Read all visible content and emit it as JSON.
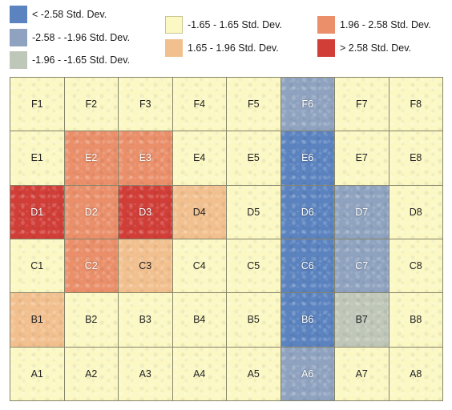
{
  "legend": [
    {
      "label": "< -2.58 Std. Dev.",
      "color": "#5b83bf",
      "class": "hot-cold"
    },
    {
      "label": "-2.58 - -1.96 Std. Dev.",
      "color": "#8fa3c0",
      "class": "cold-mid"
    },
    {
      "label": "-1.96 - -1.65 Std. Dev.",
      "color": "#bfc7b9",
      "class": "cold-low"
    },
    {
      "label": "-1.65 - 1.65 Std. Dev.",
      "color": "#fbf8c4",
      "class": "neutral"
    },
    {
      "label": "1.65 - 1.96 Std. Dev.",
      "color": "#f2c08e",
      "class": "hot-low"
    },
    {
      "label": "1.96 - 2.58 Std. Dev.",
      "color": "#ea8f6a",
      "class": "hot-mid"
    },
    {
      "label": "> 2.58 Std. Dev.",
      "color": "#d13e38",
      "class": "hot-high"
    }
  ],
  "grid": {
    "rows": [
      [
        {
          "label": "F1",
          "cls": 3
        },
        {
          "label": "F2",
          "cls": 3
        },
        {
          "label": "F3",
          "cls": 3
        },
        {
          "label": "F4",
          "cls": 3
        },
        {
          "label": "F5",
          "cls": 3
        },
        {
          "label": "F6",
          "cls": 1
        },
        {
          "label": "F7",
          "cls": 3
        },
        {
          "label": "F8",
          "cls": 3
        }
      ],
      [
        {
          "label": "E1",
          "cls": 3
        },
        {
          "label": "E2",
          "cls": 5
        },
        {
          "label": "E3",
          "cls": 5
        },
        {
          "label": "E4",
          "cls": 3
        },
        {
          "label": "E5",
          "cls": 3
        },
        {
          "label": "E6",
          "cls": 0
        },
        {
          "label": "E7",
          "cls": 3
        },
        {
          "label": "E8",
          "cls": 3
        }
      ],
      [
        {
          "label": "D1",
          "cls": 6
        },
        {
          "label": "D2",
          "cls": 5
        },
        {
          "label": "D3",
          "cls": 6
        },
        {
          "label": "D4",
          "cls": 4
        },
        {
          "label": "D5",
          "cls": 3
        },
        {
          "label": "D6",
          "cls": 0
        },
        {
          "label": "D7",
          "cls": 1
        },
        {
          "label": "D8",
          "cls": 3
        }
      ],
      [
        {
          "label": "C1",
          "cls": 3
        },
        {
          "label": "C2",
          "cls": 5
        },
        {
          "label": "C3",
          "cls": 4
        },
        {
          "label": "C4",
          "cls": 3
        },
        {
          "label": "C5",
          "cls": 3
        },
        {
          "label": "C6",
          "cls": 0
        },
        {
          "label": "C7",
          "cls": 1
        },
        {
          "label": "C8",
          "cls": 3
        }
      ],
      [
        {
          "label": "B1",
          "cls": 4
        },
        {
          "label": "B2",
          "cls": 3
        },
        {
          "label": "B3",
          "cls": 3
        },
        {
          "label": "B4",
          "cls": 3
        },
        {
          "label": "B5",
          "cls": 3
        },
        {
          "label": "B6",
          "cls": 0
        },
        {
          "label": "B7",
          "cls": 2
        },
        {
          "label": "B8",
          "cls": 3
        }
      ],
      [
        {
          "label": "A1",
          "cls": 3
        },
        {
          "label": "A2",
          "cls": 3
        },
        {
          "label": "A3",
          "cls": 3
        },
        {
          "label": "A4",
          "cls": 3
        },
        {
          "label": "A5",
          "cls": 3
        },
        {
          "label": "A6",
          "cls": 1
        },
        {
          "label": "A7",
          "cls": 3
        },
        {
          "label": "A8",
          "cls": 3
        }
      ]
    ]
  }
}
